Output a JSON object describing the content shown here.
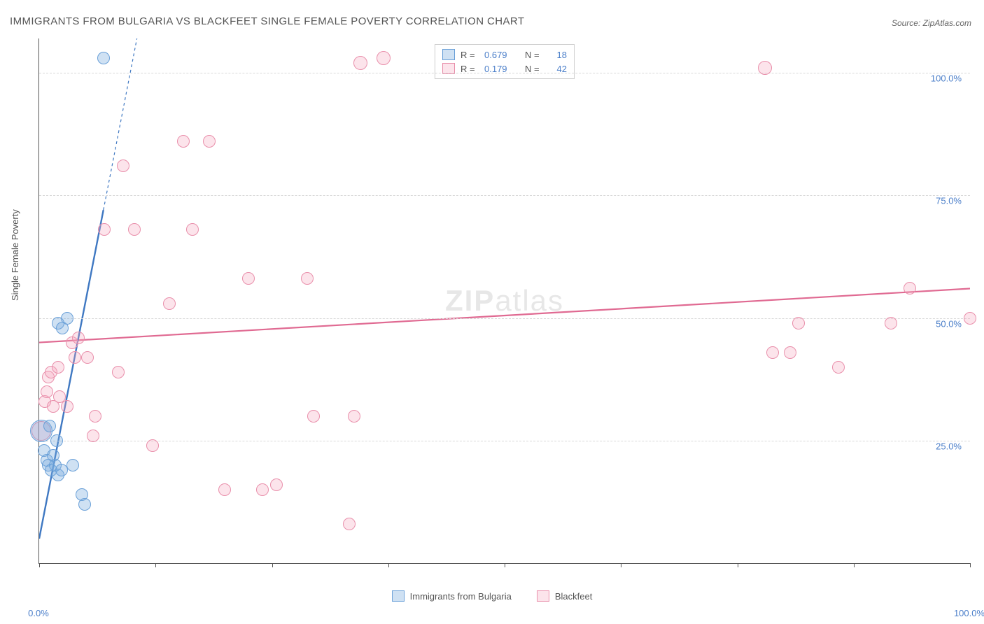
{
  "title": "IMMIGRANTS FROM BULGARIA VS BLACKFEET SINGLE FEMALE POVERTY CORRELATION CHART",
  "source_label": "Source: ZipAtlas.com",
  "y_axis_label": "Single Female Poverty",
  "watermark": {
    "bold": "ZIP",
    "light": "atlas"
  },
  "chart": {
    "type": "scatter",
    "background_color": "#ffffff",
    "grid_color": "#d8d8d8",
    "axis_color": "#555555",
    "label_fontsize": 13,
    "title_fontsize": 15,
    "xlim": [
      0,
      100
    ],
    "ylim": [
      0,
      107
    ],
    "x_ticks": [
      0,
      12.5,
      25,
      37.5,
      50,
      62.5,
      75,
      87.5,
      100
    ],
    "x_tick_labels": {
      "0": "0.0%",
      "100": "100.0%"
    },
    "y_ticks": [
      25,
      50,
      75,
      100
    ],
    "y_tick_labels": {
      "25": "25.0%",
      "50": "50.0%",
      "75": "75.0%",
      "100": "100.0%"
    },
    "point_base_radius": 9,
    "series": {
      "blue": {
        "label": "Immigrants from Bulgaria",
        "fill": "rgba(117,169,222,0.35)",
        "stroke": "#6aa0d8",
        "R": "0.679",
        "N": "18",
        "trend": {
          "x1": 0,
          "y1": 5,
          "x2": 10.5,
          "y2": 107,
          "solid_until_x": 6.9,
          "color": "#3f78c2",
          "width": 2.4
        },
        "points": [
          {
            "x": 0.2,
            "y": 27,
            "r": 16
          },
          {
            "x": 0.5,
            "y": 23,
            "r": 9
          },
          {
            "x": 0.8,
            "y": 21,
            "r": 9
          },
          {
            "x": 1.0,
            "y": 20,
            "r": 9
          },
          {
            "x": 1.3,
            "y": 19,
            "r": 9
          },
          {
            "x": 1.5,
            "y": 22,
            "r": 9
          },
          {
            "x": 1.7,
            "y": 20,
            "r": 9
          },
          {
            "x": 2.0,
            "y": 18,
            "r": 9
          },
          {
            "x": 2.4,
            "y": 19,
            "r": 9
          },
          {
            "x": 2.0,
            "y": 49,
            "r": 9
          },
          {
            "x": 3.0,
            "y": 50,
            "r": 9
          },
          {
            "x": 3.6,
            "y": 20,
            "r": 9
          },
          {
            "x": 4.6,
            "y": 14,
            "r": 9
          },
          {
            "x": 4.9,
            "y": 12,
            "r": 9
          },
          {
            "x": 1.9,
            "y": 25,
            "r": 9
          },
          {
            "x": 1.1,
            "y": 28,
            "r": 9
          },
          {
            "x": 2.5,
            "y": 48,
            "r": 9
          },
          {
            "x": 6.9,
            "y": 103,
            "r": 9
          }
        ]
      },
      "pink": {
        "label": "Blackfeet",
        "fill": "rgba(244,166,189,0.30)",
        "stroke": "#e98fab",
        "R": "0.179",
        "N": "42",
        "trend": {
          "x1": 0,
          "y1": 45,
          "x2": 100,
          "y2": 56,
          "color": "#e06a92",
          "width": 2.2
        },
        "points": [
          {
            "x": 0.2,
            "y": 27,
            "r": 14
          },
          {
            "x": 0.6,
            "y": 33,
            "r": 9
          },
          {
            "x": 0.8,
            "y": 35,
            "r": 9
          },
          {
            "x": 1.0,
            "y": 38,
            "r": 9
          },
          {
            "x": 1.3,
            "y": 39,
            "r": 9
          },
          {
            "x": 1.5,
            "y": 32,
            "r": 9
          },
          {
            "x": 2.0,
            "y": 40,
            "r": 9
          },
          {
            "x": 2.2,
            "y": 34,
            "r": 9
          },
          {
            "x": 3.5,
            "y": 45,
            "r": 9
          },
          {
            "x": 3.0,
            "y": 32,
            "r": 9
          },
          {
            "x": 3.8,
            "y": 42,
            "r": 9
          },
          {
            "x": 4.2,
            "y": 46,
            "r": 9
          },
          {
            "x": 5.2,
            "y": 42,
            "r": 9
          },
          {
            "x": 5.8,
            "y": 26,
            "r": 9
          },
          {
            "x": 6.0,
            "y": 30,
            "r": 9
          },
          {
            "x": 7.0,
            "y": 68,
            "r": 9
          },
          {
            "x": 8.5,
            "y": 39,
            "r": 9
          },
          {
            "x": 9.0,
            "y": 81,
            "r": 9
          },
          {
            "x": 10.2,
            "y": 68,
            "r": 9
          },
          {
            "x": 12.2,
            "y": 24,
            "r": 9
          },
          {
            "x": 14.0,
            "y": 53,
            "r": 9
          },
          {
            "x": 15.5,
            "y": 86,
            "r": 9
          },
          {
            "x": 16.5,
            "y": 68,
            "r": 9
          },
          {
            "x": 18.3,
            "y": 86,
            "r": 9
          },
          {
            "x": 19.9,
            "y": 15,
            "r": 9
          },
          {
            "x": 22.5,
            "y": 58,
            "r": 9
          },
          {
            "x": 24.0,
            "y": 15,
            "r": 9
          },
          {
            "x": 25.5,
            "y": 16,
            "r": 9
          },
          {
            "x": 28.8,
            "y": 58,
            "r": 9
          },
          {
            "x": 29.5,
            "y": 30,
            "r": 9
          },
          {
            "x": 33.3,
            "y": 8,
            "r": 9
          },
          {
            "x": 33.8,
            "y": 30,
            "r": 9
          },
          {
            "x": 34.5,
            "y": 102,
            "r": 10
          },
          {
            "x": 37.0,
            "y": 103,
            "r": 10
          },
          {
            "x": 78.8,
            "y": 43,
            "r": 9
          },
          {
            "x": 80.7,
            "y": 43,
            "r": 9
          },
          {
            "x": 81.6,
            "y": 49,
            "r": 9
          },
          {
            "x": 85.9,
            "y": 40,
            "r": 9
          },
          {
            "x": 91.5,
            "y": 49,
            "r": 9
          },
          {
            "x": 93.5,
            "y": 56,
            "r": 9
          },
          {
            "x": 100.0,
            "y": 50,
            "r": 9
          },
          {
            "x": 78.0,
            "y": 101,
            "r": 10
          }
        ]
      }
    }
  }
}
